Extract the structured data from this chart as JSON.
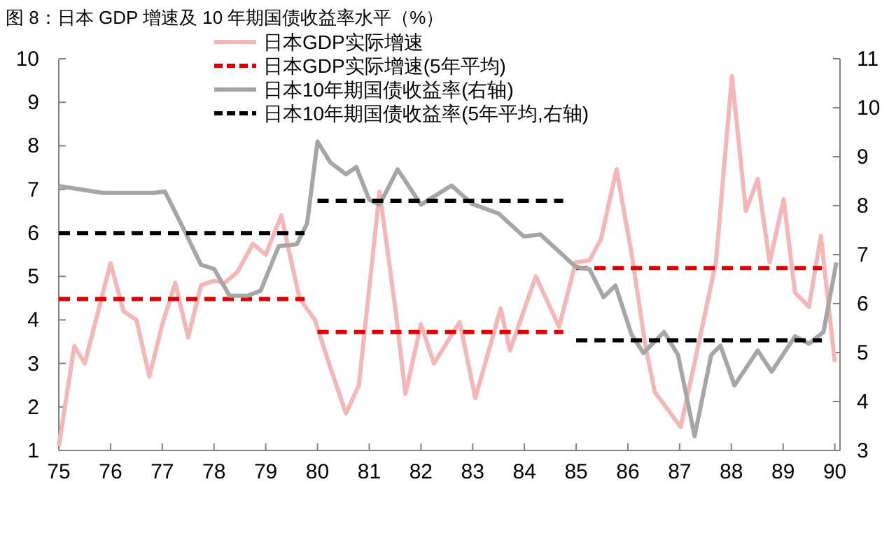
{
  "chart_data": {
    "type": "line",
    "title": "图 8：日本 GDP 增速及 10 年期国债收益率水平（%）",
    "xlim": [
      75,
      90.1
    ],
    "xticks": [
      75,
      76,
      77,
      78,
      79,
      80,
      81,
      82,
      83,
      84,
      85,
      86,
      87,
      88,
      89,
      90
    ],
    "ylim": [
      1,
      10
    ],
    "yticks": [
      1,
      2,
      3,
      4,
      5,
      6,
      7,
      8,
      9,
      10
    ],
    "y2lim": [
      3,
      11
    ],
    "y2ticks": [
      3,
      4,
      5,
      6,
      7,
      8,
      9,
      10,
      11
    ],
    "legend": "top",
    "grid": false,
    "line_style": "solid",
    "marker": "none",
    "series": [
      {
        "name": "日本GDP实际增速",
        "color": "#f4b6b6",
        "x": [
          75,
          75.3,
          75.5,
          76,
          76.25,
          76.5,
          76.75,
          77,
          77.25,
          77.5,
          77.75,
          78,
          78.2,
          78.45,
          78.75,
          79,
          79.3,
          79.65,
          79.95,
          80.25,
          80.55,
          80.8,
          81.2,
          81.5,
          81.7,
          82,
          82.25,
          82.75,
          83.05,
          83.54,
          83.72,
          84.22,
          84.67,
          84.99,
          85.26,
          85.48,
          85.78,
          86.07,
          86.34,
          86.52,
          86.79,
          87.02,
          87.34,
          87.7,
          88.01,
          88.28,
          88.51,
          88.74,
          89.01,
          89.23,
          89.5,
          89.73,
          90
        ],
        "values": [
          1.1,
          3.4,
          3.0,
          5.3,
          4.2,
          4.0,
          2.7,
          3.9,
          4.85,
          3.6,
          4.8,
          4.9,
          4.85,
          5.1,
          5.75,
          5.5,
          6.4,
          4.5,
          4.0,
          2.9,
          1.85,
          2.5,
          6.95,
          4.3,
          2.3,
          3.9,
          3.0,
          3.95,
          2.2,
          4.26,
          3.3,
          5.0,
          3.84,
          5.32,
          5.37,
          5.86,
          7.46,
          5.53,
          3.4,
          2.34,
          1.91,
          1.54,
          3.3,
          5.32,
          9.6,
          6.5,
          7.24,
          5.32,
          6.77,
          4.63,
          4.3,
          5.93,
          3.03
        ]
      },
      {
        "name": "日本GDP实际增速(5年平均)",
        "color": "#e00000",
        "line_style": "dashed",
        "x": [
          75,
          79.75
        ],
        "values": [
          4.48,
          4.48
        ]
      },
      {
        "color": "#e00000",
        "line_style": "dashed",
        "x": [
          80,
          84.75
        ],
        "values": [
          3.72,
          3.72
        ]
      },
      {
        "color": "#e00000",
        "line_style": "dashed",
        "x": [
          85,
          89.75
        ],
        "values": [
          5.19,
          5.19
        ]
      },
      {
        "name": "日本10年期国债收益率(右轴)",
        "color": "#a6a6a6",
        "axis": "y2",
        "x": [
          75,
          75.85,
          76.85,
          77.05,
          77.4,
          77.75,
          78,
          78.3,
          78.65,
          78.9,
          79.25,
          79.6,
          79.8,
          80,
          80.25,
          80.55,
          80.75,
          81,
          81.2,
          81.55,
          82,
          82.59,
          83,
          83.5,
          83.99,
          84.31,
          84.99,
          85.26,
          85.53,
          85.76,
          86.07,
          86.3,
          86.7,
          86.97,
          87.29,
          87.61,
          87.79,
          88.06,
          88.51,
          88.78,
          89.23,
          89.5,
          89.78,
          90.03
        ],
        "values": [
          8.4,
          8.26,
          8.26,
          8.29,
          7.55,
          6.79,
          6.71,
          6.16,
          6.16,
          6.26,
          7.17,
          7.21,
          7.64,
          9.31,
          8.88,
          8.64,
          8.79,
          8.12,
          8.02,
          8.74,
          8.02,
          8.41,
          8.03,
          7.84,
          7.37,
          7.41,
          6.75,
          6.7,
          6.13,
          6.37,
          5.37,
          4.99,
          5.42,
          4.95,
          3.29,
          4.95,
          5.14,
          4.33,
          5.04,
          4.61,
          5.33,
          5.18,
          5.42,
          6.84
        ]
      },
      {
        "name": "日本10年期国债收益率(5年平均,右轴)",
        "color": "#000000",
        "line_style": "dashed",
        "axis": "y2",
        "x": [
          75,
          79.75
        ],
        "values": [
          7.44,
          7.44
        ]
      },
      {
        "color": "#000000",
        "line_style": "dashed",
        "axis": "y2",
        "x": [
          80,
          84.75
        ],
        "values": [
          8.1,
          8.1
        ]
      },
      {
        "color": "#000000",
        "line_style": "dashed",
        "axis": "y2",
        "x": [
          85,
          89.75
        ],
        "values": [
          5.25,
          5.25
        ]
      }
    ]
  }
}
